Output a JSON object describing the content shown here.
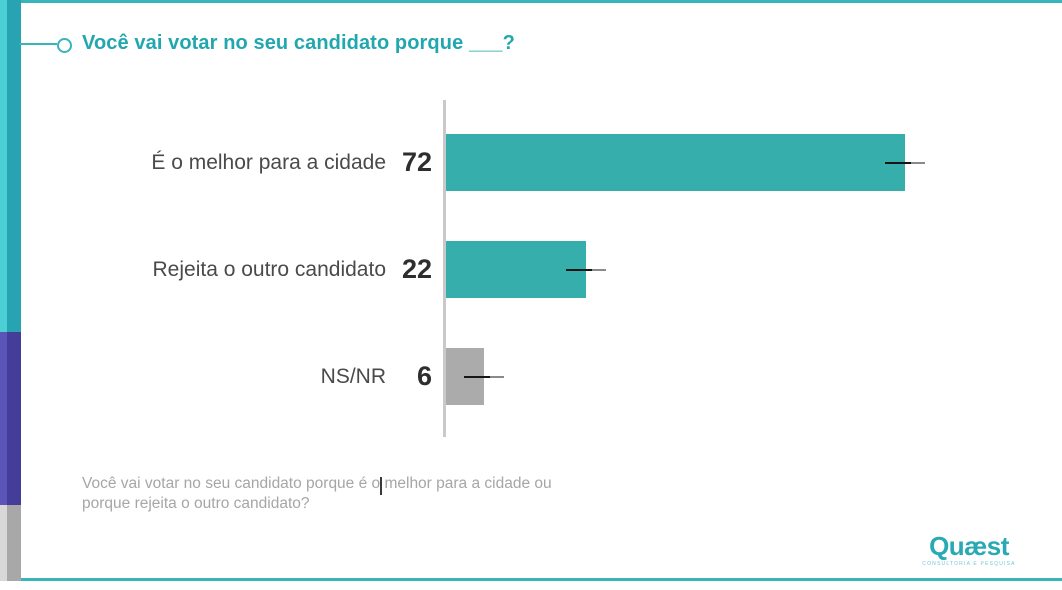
{
  "slide": {
    "title": "Você vai votar no seu candidato porque ___?",
    "footnote": {
      "line1": "Você vai votar no seu candidato porque é o melhor para a cidade ou",
      "line2": "porque rejeita o outro candidato?"
    },
    "logo": {
      "wordmark": "Quæst",
      "tagline": "CONSULTORIA E PESQUISA"
    }
  },
  "chart_data": {
    "type": "bar",
    "orientation": "horizontal",
    "title": "Você vai votar no seu candidato porque ___?",
    "categories": [
      "É o melhor para a cidade",
      "Rejeita o outro candidato",
      "NS/NR"
    ],
    "values": [
      72,
      22,
      6
    ],
    "value_labels": [
      "72",
      "22",
      "6"
    ],
    "bar_colors": [
      "#35aeac",
      "#35aeac",
      "#ababab"
    ],
    "xlim": [
      0,
      100
    ],
    "grid": false,
    "legend": false,
    "end_dash_markers": true
  },
  "colors": {
    "accent_teal": "#35aeac",
    "title_teal": "#22a7ae",
    "rule_teal": "#38b4bb",
    "stripe_teal_light": "#4dcfd6",
    "stripe_teal_dark": "#28a3b1",
    "stripe_purple_light": "#5a55b7",
    "stripe_purple_dark": "#443d99",
    "stripe_gray_light": "#d8d8d8",
    "stripe_gray_dark": "#a8a8a8",
    "axis_gray": "#c9c9c9",
    "bar_gray": "#ababab"
  }
}
